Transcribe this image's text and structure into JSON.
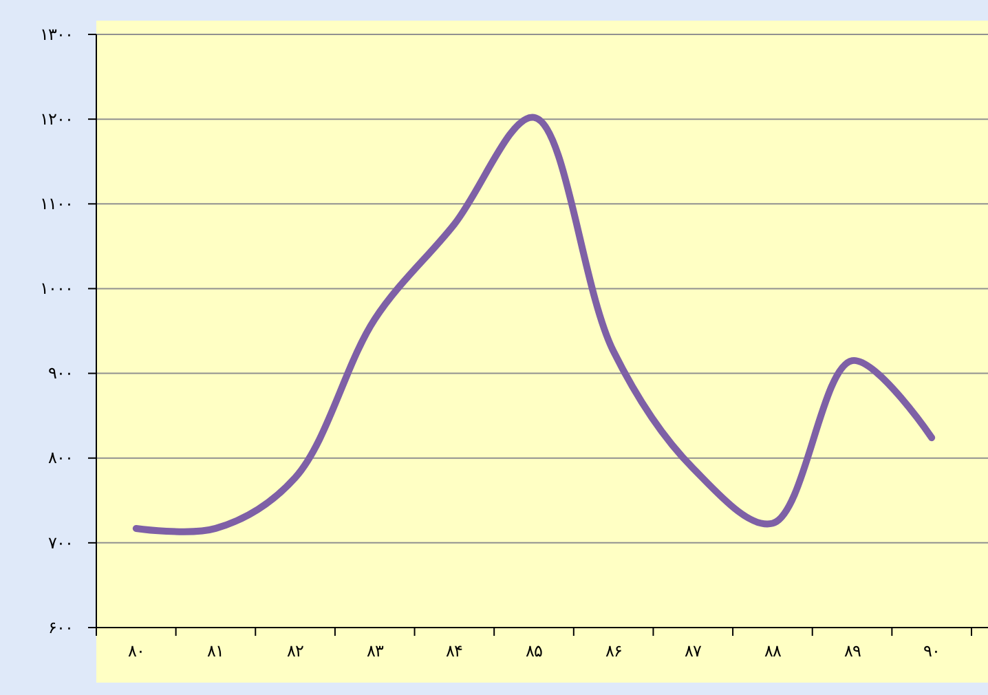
{
  "chart_data": {
    "type": "line",
    "categories": [
      "۸۰",
      "۸۱",
      "۸۲",
      "۸۳",
      "۸۴",
      "۸۵",
      "۸۶",
      "۸۷",
      "۸۸",
      "۸۹",
      "۹۰"
    ],
    "series": [
      {
        "color": "#7e60a6",
        "values": [
          717,
          717,
          777,
          964,
          1076,
          1202,
          926,
          788,
          723,
          915,
          824
        ]
      }
    ],
    "ylim": [
      600,
      1300
    ],
    "yticks": [
      {
        "value": 600,
        "label": "۶۰۰"
      },
      {
        "value": 700,
        "label": "۷۰۰"
      },
      {
        "value": 800,
        "label": "۸۰۰"
      },
      {
        "value": 900,
        "label": "۹۰۰"
      },
      {
        "value": 1000,
        "label": "۱۰۰۰"
      },
      {
        "value": 1100,
        "label": "۱۱۰۰"
      },
      {
        "value": 1200,
        "label": "۱۲۰۰"
      },
      {
        "value": 1300,
        "label": "۱۳۰۰"
      }
    ],
    "grid": "y",
    "marker": "none",
    "line_style": "solid"
  }
}
